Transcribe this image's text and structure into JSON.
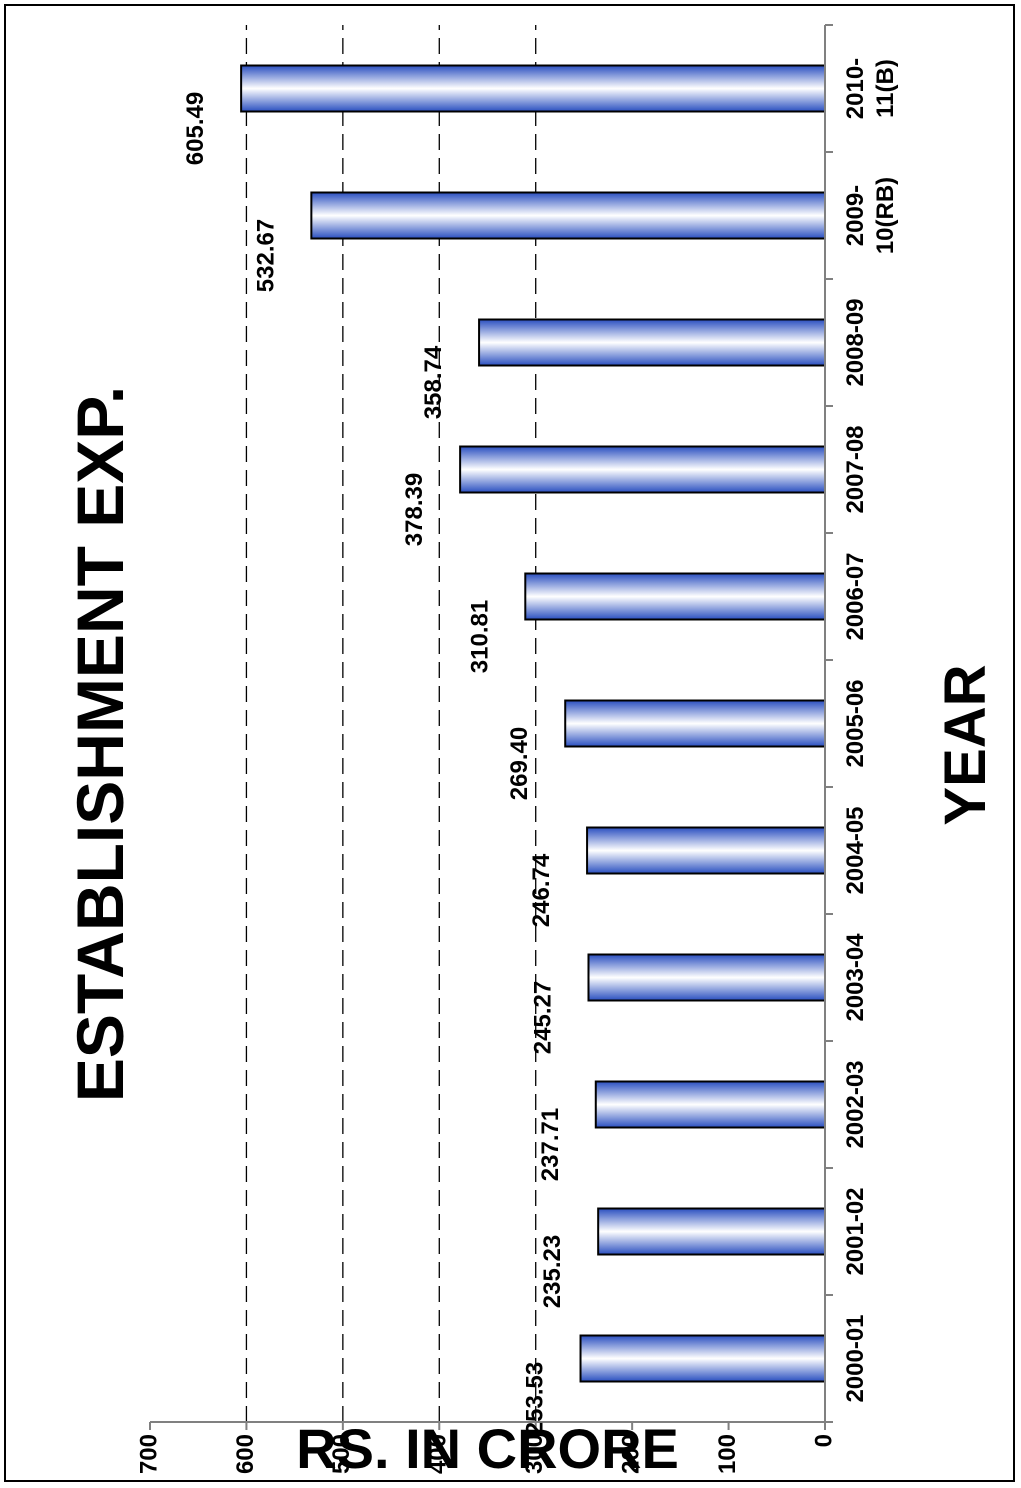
{
  "chart_data": {
    "type": "bar",
    "title": "ESTABLISHMENT EXP.",
    "xlabel": "YEAR",
    "ylabel": "RS. IN CRORE",
    "categories": [
      "2000-01",
      "2001-02",
      "2002-03",
      "2003-04",
      "2004-05",
      "2005-06",
      "2006-07",
      "2007-08",
      "2008-09",
      "2009-10(RB)",
      "2010-11(B)"
    ],
    "category_label_lines": [
      [
        "2000-01"
      ],
      [
        "2001-02"
      ],
      [
        "2002-03"
      ],
      [
        "2003-04"
      ],
      [
        "2004-05"
      ],
      [
        "2005-06"
      ],
      [
        "2006-07"
      ],
      [
        "2007-08"
      ],
      [
        "2008-09"
      ],
      [
        "2009-",
        "10(RB)"
      ],
      [
        "2010-",
        "11(B)"
      ]
    ],
    "values": [
      253.53,
      235.23,
      237.71,
      245.27,
      246.74,
      269.4,
      310.81,
      378.39,
      358.74,
      532.67,
      605.49
    ],
    "value_labels": [
      "253.53",
      "235.23",
      "237.71",
      "245.27",
      "246.74",
      "269.40",
      "310.81",
      "378.39",
      "358.74",
      "532.67",
      "605.49"
    ],
    "yticks": [
      0,
      100,
      200,
      300,
      400,
      500,
      600,
      700
    ],
    "ylim": [
      0,
      700
    ],
    "grid": true,
    "gridlines": [
      300,
      400,
      500,
      600
    ],
    "orientation": "rotated-90-ccw",
    "colors": {
      "bar_dark": "#2a4fc0",
      "bar_light": "#ffffff",
      "outline": "#000000"
    }
  }
}
